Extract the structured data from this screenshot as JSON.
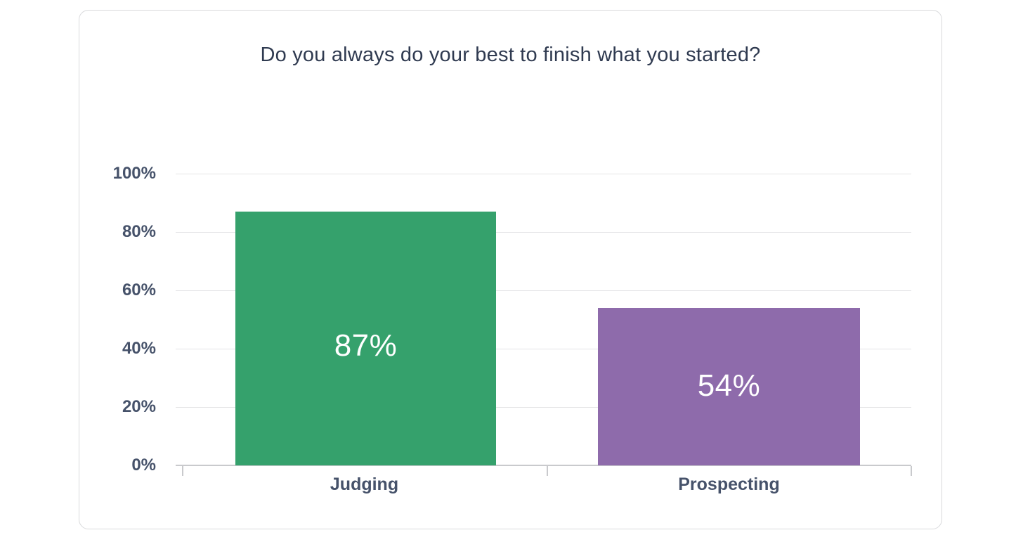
{
  "chart_data": {
    "type": "bar",
    "title": "Do you always do your best to finish what you started?",
    "categories": [
      "Judging",
      "Prospecting"
    ],
    "values": [
      87,
      54
    ],
    "value_labels": [
      "87%",
      "54%"
    ],
    "series": [
      {
        "name": "Judging",
        "value": 87,
        "label": "87%",
        "color": "#35a16c"
      },
      {
        "name": "Prospecting",
        "value": 54,
        "label": "54%",
        "color": "#8e6bab"
      }
    ],
    "xlabel": "",
    "ylabel": "",
    "ylim": [
      0,
      100
    ],
    "yticks": [
      0,
      20,
      40,
      60,
      80,
      100
    ],
    "ytick_labels": [
      "0%",
      "20%",
      "40%",
      "60%",
      "80%",
      "100%"
    ],
    "grid": "horizontal",
    "legend": "none",
    "theme": {
      "bar_judging": "#35a16c",
      "bar_prospecting": "#8e6bab",
      "title_text": "#2f3a50",
      "axis_text": "#46526a",
      "gridline": "#e4e4e6",
      "axis_line": "#c9cacd",
      "card_background": "#ffffff",
      "card_border": "#d9dadc",
      "value_label_text": "#ffffff"
    }
  }
}
